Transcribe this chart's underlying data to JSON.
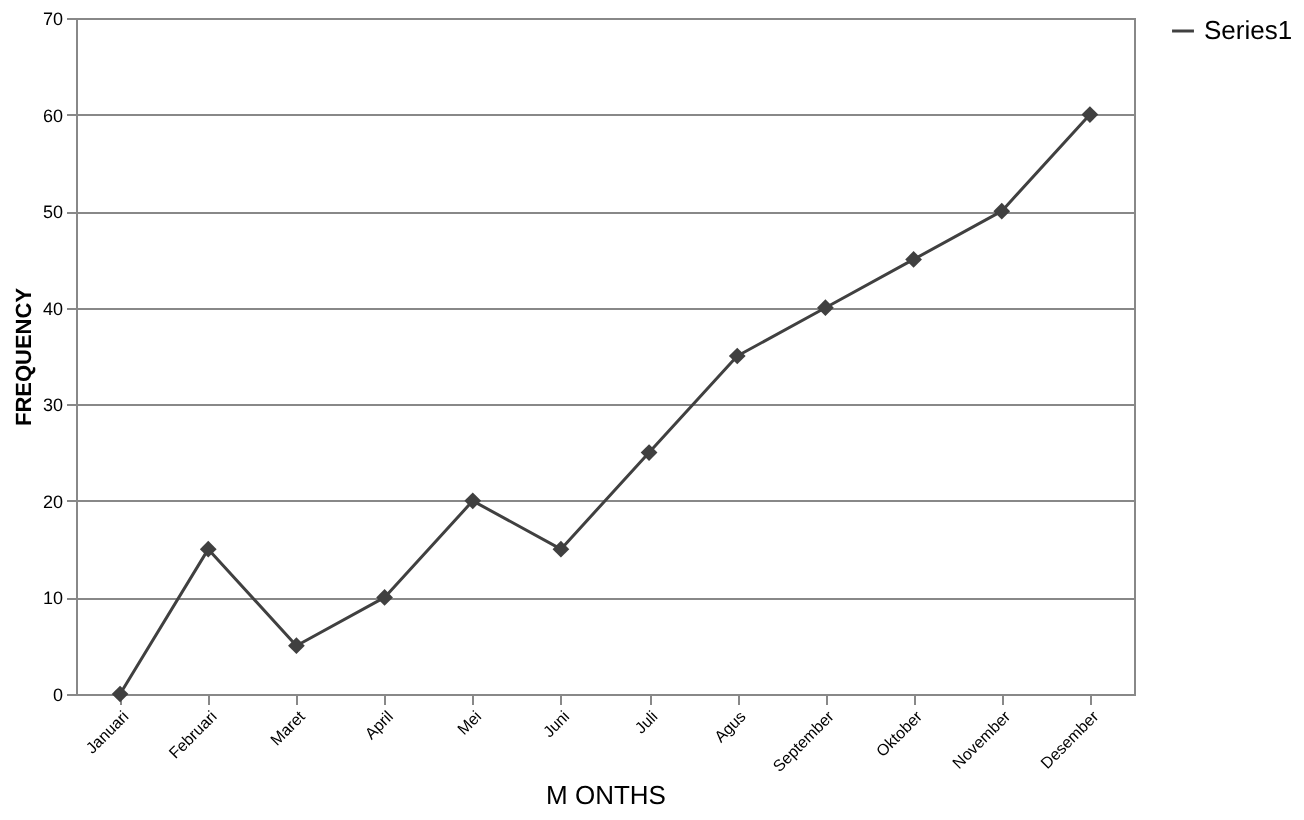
{
  "chart_data": {
    "type": "line",
    "xlabel": "M ONTHS",
    "ylabel": "FREQUENCY",
    "categories": [
      "Januari",
      "Februari",
      "Maret",
      "April",
      "Mei",
      "Juni",
      "Juli",
      "Agus",
      "September",
      "Oktober",
      "November",
      "Desember"
    ],
    "series": [
      {
        "name": "Series1",
        "color": "#404040",
        "values": [
          0,
          15,
          5,
          10,
          20,
          15,
          25,
          35,
          40,
          45,
          50,
          60
        ]
      }
    ],
    "ylim": [
      0,
      70
    ],
    "yticks": [
      0,
      10,
      20,
      30,
      40,
      50,
      60,
      70
    ],
    "grid": "y",
    "legend": "right",
    "marker": "diamond",
    "line_style": "solid"
  }
}
